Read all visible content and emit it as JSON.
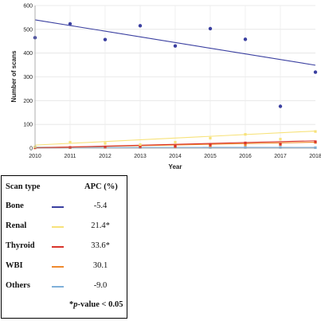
{
  "chart_data": {
    "type": "scatter",
    "title": "",
    "xlabel": "Year",
    "ylabel": "Number of scans",
    "xlim": [
      2010,
      2018
    ],
    "ylim": [
      0,
      600
    ],
    "x_ticks": [
      "2010",
      "2011",
      "2012",
      "2013",
      "2014",
      "2015",
      "2016",
      "2017",
      "2018"
    ],
    "y_ticks": [
      "0",
      "100",
      "200",
      "300",
      "400",
      "500",
      "600"
    ],
    "grid": true,
    "x": [
      2010,
      2011,
      2012,
      2013,
      2014,
      2015,
      2016,
      2017,
      2018
    ],
    "series": [
      {
        "name": "Bone",
        "color": "#3a3fa0",
        "values": [
          465,
          523,
          457,
          515,
          430,
          503,
          458,
          176,
          320
        ],
        "trend": [
          540,
          349
        ]
      },
      {
        "name": "Renal",
        "color": "#f7e27a",
        "values": [
          5,
          25,
          20,
          15,
          25,
          42,
          58,
          38,
          70
        ],
        "trend": [
          13,
          72
        ]
      },
      {
        "name": "Thyroid",
        "color": "#d9342b",
        "values": [
          2,
          3,
          5,
          6,
          8,
          14,
          22,
          17,
          27
        ],
        "trend": [
          1,
          31
        ]
      },
      {
        "name": "WBI",
        "color": "#ef8a2e",
        "values": [
          1,
          2,
          3,
          5,
          6,
          10,
          14,
          15,
          24
        ],
        "trend": [
          2,
          25
        ]
      },
      {
        "name": "Others",
        "color": "#7fb0d9",
        "values": [
          4,
          3,
          4,
          3,
          4,
          3,
          3,
          3,
          2
        ],
        "trend": [
          4,
          3
        ]
      }
    ]
  },
  "legend": {
    "col_type": "Scan type",
    "col_apc": "APC (%)",
    "rows": [
      {
        "name": "Bone",
        "apc": "-5.4",
        "color": "#3a3fa0"
      },
      {
        "name": "Renal",
        "apc": "21.4*",
        "color": "#f7e27a"
      },
      {
        "name": "Thyroid",
        "apc": "33.6*",
        "color": "#d9342b"
      },
      {
        "name": "WBI",
        "apc": "30.1",
        "color": "#ef8a2e"
      },
      {
        "name": "Others",
        "apc": "-9.0",
        "color": "#7fb0d9"
      }
    ],
    "note_prefix": "*",
    "note_p": "p",
    "note_suffix": "-value < 0.05"
  }
}
